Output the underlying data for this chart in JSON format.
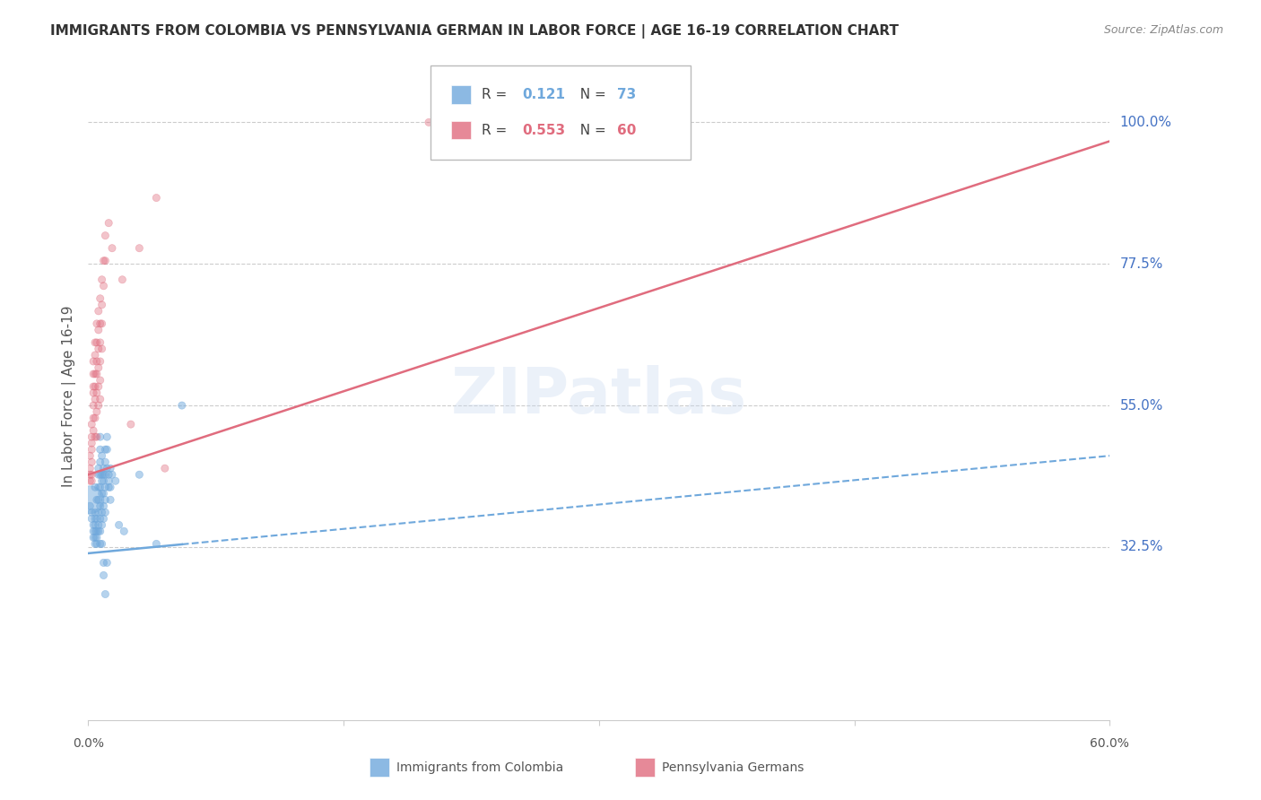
{
  "title": "IMMIGRANTS FROM COLOMBIA VS PENNSYLVANIA GERMAN IN LABOR FORCE | AGE 16-19 CORRELATION CHART",
  "source": "Source: ZipAtlas.com",
  "ylabel": "In Labor Force | Age 16-19",
  "xlim": [
    0.0,
    0.6
  ],
  "ylim": [
    0.05,
    1.08
  ],
  "blue_color": "#6fa8dc",
  "pink_color": "#e06c7e",
  "blue_R": 0.121,
  "blue_N": 73,
  "pink_R": 0.553,
  "pink_N": 60,
  "watermark": "ZIPatlas",
  "grid_color": "#cccccc",
  "background_color": "#ffffff",
  "ytick_vals": [
    0.325,
    0.55,
    0.775,
    1.0
  ],
  "ytick_labels": [
    "32.5%",
    "55.0%",
    "77.5%",
    "100.0%"
  ],
  "blue_line": [
    0.0,
    0.315,
    0.6,
    0.47
  ],
  "pink_line": [
    0.0,
    0.44,
    0.6,
    0.97
  ],
  "blue_scatter": [
    [
      0.001,
      0.39
    ],
    [
      0.002,
      0.38
    ],
    [
      0.002,
      0.37
    ],
    [
      0.003,
      0.36
    ],
    [
      0.003,
      0.35
    ],
    [
      0.003,
      0.34
    ],
    [
      0.004,
      0.38
    ],
    [
      0.004,
      0.37
    ],
    [
      0.004,
      0.36
    ],
    [
      0.004,
      0.35
    ],
    [
      0.004,
      0.34
    ],
    [
      0.004,
      0.42
    ],
    [
      0.004,
      0.33
    ],
    [
      0.005,
      0.4
    ],
    [
      0.005,
      0.37
    ],
    [
      0.005,
      0.35
    ],
    [
      0.005,
      0.34
    ],
    [
      0.005,
      0.33
    ],
    [
      0.006,
      0.45
    ],
    [
      0.006,
      0.44
    ],
    [
      0.006,
      0.42
    ],
    [
      0.006,
      0.4
    ],
    [
      0.006,
      0.38
    ],
    [
      0.006,
      0.36
    ],
    [
      0.006,
      0.35
    ],
    [
      0.007,
      0.5
    ],
    [
      0.007,
      0.48
    ],
    [
      0.007,
      0.46
    ],
    [
      0.007,
      0.44
    ],
    [
      0.007,
      0.42
    ],
    [
      0.007,
      0.39
    ],
    [
      0.007,
      0.37
    ],
    [
      0.007,
      0.35
    ],
    [
      0.007,
      0.33
    ],
    [
      0.008,
      0.47
    ],
    [
      0.008,
      0.44
    ],
    [
      0.008,
      0.43
    ],
    [
      0.008,
      0.41
    ],
    [
      0.008,
      0.38
    ],
    [
      0.008,
      0.36
    ],
    [
      0.008,
      0.33
    ],
    [
      0.009,
      0.45
    ],
    [
      0.009,
      0.44
    ],
    [
      0.009,
      0.43
    ],
    [
      0.009,
      0.41
    ],
    [
      0.009,
      0.39
    ],
    [
      0.009,
      0.37
    ],
    [
      0.009,
      0.3
    ],
    [
      0.009,
      0.28
    ],
    [
      0.01,
      0.48
    ],
    [
      0.01,
      0.46
    ],
    [
      0.01,
      0.44
    ],
    [
      0.01,
      0.42
    ],
    [
      0.01,
      0.4
    ],
    [
      0.01,
      0.38
    ],
    [
      0.01,
      0.25
    ],
    [
      0.011,
      0.5
    ],
    [
      0.011,
      0.48
    ],
    [
      0.011,
      0.45
    ],
    [
      0.011,
      0.3
    ],
    [
      0.012,
      0.44
    ],
    [
      0.012,
      0.43
    ],
    [
      0.012,
      0.42
    ],
    [
      0.013,
      0.45
    ],
    [
      0.013,
      0.42
    ],
    [
      0.013,
      0.4
    ],
    [
      0.014,
      0.44
    ],
    [
      0.016,
      0.43
    ],
    [
      0.018,
      0.36
    ],
    [
      0.021,
      0.35
    ],
    [
      0.03,
      0.44
    ],
    [
      0.04,
      0.33
    ],
    [
      0.055,
      0.55
    ],
    [
      0.001,
      0.4
    ]
  ],
  "blue_sizes": [
    35,
    35,
    35,
    35,
    35,
    35,
    35,
    35,
    35,
    35,
    35,
    35,
    35,
    35,
    35,
    35,
    35,
    35,
    35,
    35,
    35,
    35,
    35,
    35,
    35,
    35,
    35,
    35,
    35,
    35,
    35,
    35,
    35,
    35,
    35,
    35,
    35,
    35,
    35,
    35,
    35,
    35,
    35,
    35,
    35,
    35,
    35,
    35,
    35,
    35,
    35,
    35,
    35,
    35,
    35,
    35,
    35,
    35,
    35,
    35,
    35,
    35,
    35,
    35,
    35,
    35,
    35,
    35,
    35,
    35,
    35,
    35,
    35,
    500
  ],
  "pink_scatter": [
    [
      0.001,
      0.47
    ],
    [
      0.001,
      0.45
    ],
    [
      0.001,
      0.44
    ],
    [
      0.001,
      0.43
    ],
    [
      0.002,
      0.52
    ],
    [
      0.002,
      0.5
    ],
    [
      0.002,
      0.49
    ],
    [
      0.002,
      0.48
    ],
    [
      0.002,
      0.46
    ],
    [
      0.002,
      0.44
    ],
    [
      0.002,
      0.43
    ],
    [
      0.003,
      0.62
    ],
    [
      0.003,
      0.6
    ],
    [
      0.003,
      0.58
    ],
    [
      0.003,
      0.57
    ],
    [
      0.003,
      0.55
    ],
    [
      0.003,
      0.53
    ],
    [
      0.003,
      0.51
    ],
    [
      0.004,
      0.65
    ],
    [
      0.004,
      0.63
    ],
    [
      0.004,
      0.6
    ],
    [
      0.004,
      0.58
    ],
    [
      0.004,
      0.56
    ],
    [
      0.004,
      0.53
    ],
    [
      0.004,
      0.5
    ],
    [
      0.005,
      0.68
    ],
    [
      0.005,
      0.65
    ],
    [
      0.005,
      0.62
    ],
    [
      0.005,
      0.6
    ],
    [
      0.005,
      0.57
    ],
    [
      0.005,
      0.54
    ],
    [
      0.005,
      0.5
    ],
    [
      0.006,
      0.7
    ],
    [
      0.006,
      0.67
    ],
    [
      0.006,
      0.64
    ],
    [
      0.006,
      0.61
    ],
    [
      0.006,
      0.58
    ],
    [
      0.006,
      0.55
    ],
    [
      0.007,
      0.72
    ],
    [
      0.007,
      0.68
    ],
    [
      0.007,
      0.65
    ],
    [
      0.007,
      0.62
    ],
    [
      0.007,
      0.59
    ],
    [
      0.007,
      0.56
    ],
    [
      0.008,
      0.75
    ],
    [
      0.008,
      0.71
    ],
    [
      0.008,
      0.68
    ],
    [
      0.008,
      0.64
    ],
    [
      0.009,
      0.78
    ],
    [
      0.009,
      0.74
    ],
    [
      0.01,
      0.82
    ],
    [
      0.01,
      0.78
    ],
    [
      0.012,
      0.84
    ],
    [
      0.014,
      0.8
    ],
    [
      0.02,
      0.75
    ],
    [
      0.025,
      0.52
    ],
    [
      0.03,
      0.8
    ],
    [
      0.04,
      0.88
    ],
    [
      0.045,
      0.45
    ],
    [
      0.2,
      1.0
    ]
  ],
  "pink_sizes": [
    35,
    35,
    35,
    35,
    35,
    35,
    35,
    35,
    35,
    35,
    35,
    35,
    35,
    35,
    35,
    35,
    35,
    35,
    35,
    35,
    35,
    35,
    35,
    35,
    35,
    35,
    35,
    35,
    35,
    35,
    35,
    35,
    35,
    35,
    35,
    35,
    35,
    35,
    35,
    35,
    35,
    35,
    35,
    35,
    35,
    35,
    35,
    35,
    35,
    35,
    35,
    35,
    35,
    35,
    35,
    35,
    35,
    35,
    35,
    35
  ]
}
